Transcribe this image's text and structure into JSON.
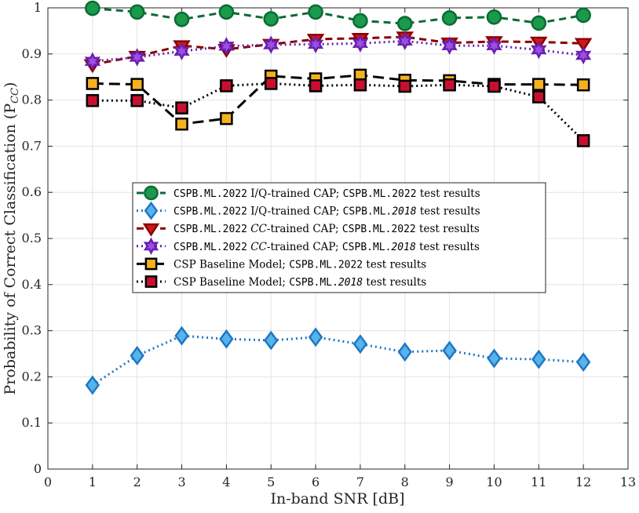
{
  "chart_data": {
    "type": "line",
    "xlabel": "In-band SNR [dB]",
    "ylabel": "Probability of Correct Classification (P",
    "ylabel_sub": "CC",
    "ylabel_close": ")",
    "xlim": [
      0,
      13
    ],
    "ylim": [
      0,
      1
    ],
    "xticks": [
      "0",
      "1",
      "2",
      "3",
      "4",
      "5",
      "6",
      "7",
      "8",
      "9",
      "10",
      "11",
      "12",
      "13"
    ],
    "yticks": [
      "0",
      "0.1",
      "0.2",
      "0.3",
      "0.4",
      "0.5",
      "0.6",
      "0.7",
      "0.8",
      "0.9",
      "1"
    ],
    "grid": true,
    "legend_position": "center-left",
    "x": [
      1,
      2,
      3,
      4,
      5,
      6,
      7,
      8,
      9,
      10,
      11,
      12
    ],
    "series": [
      {
        "name": "CSPB.ML.2022 I/Q-trained CAP; CSPB.ML.2022 test results",
        "values": [
          0.999,
          0.991,
          0.975,
          0.991,
          0.976,
          0.991,
          0.972,
          0.966,
          0.978,
          0.98,
          0.967,
          0.984
        ],
        "color": "#0b6b35",
        "fill": "#1a9a4a",
        "dash": "9,6",
        "marker": "circle"
      },
      {
        "name": "CSPB.ML.2022 I/Q-trained CAP; CSPB.ML.2018 test results",
        "values": [
          0.182,
          0.246,
          0.289,
          0.282,
          0.279,
          0.286,
          0.271,
          0.254,
          0.257,
          0.24,
          0.238,
          0.232
        ],
        "color": "#1f77c4",
        "fill": "#55b4ea",
        "dash": "2,4",
        "marker": "diamond"
      },
      {
        "name": "CSPB.ML.2022 CC-trained CAP; CSPB.ML.2022 test results",
        "values": [
          0.877,
          0.895,
          0.918,
          0.91,
          0.921,
          0.932,
          0.934,
          0.937,
          0.924,
          0.927,
          0.926,
          0.923
        ],
        "color": "#8b0000",
        "fill": "#cc1a1a",
        "dash": "9,6",
        "marker": "triangle"
      },
      {
        "name": "CSPB.ML.2022 CC-trained CAP; CSPB.ML.2018 test results",
        "values": [
          0.884,
          0.893,
          0.906,
          0.917,
          0.92,
          0.921,
          0.923,
          0.928,
          0.918,
          0.918,
          0.909,
          0.897
        ],
        "color": "#6a1fb0",
        "fill": "#9b4fe0",
        "dash": "2,4",
        "marker": "star"
      },
      {
        "name": "CSP Baseline Model; CSPB.ML.2022 test results",
        "values": [
          0.836,
          0.834,
          0.748,
          0.76,
          0.852,
          0.846,
          0.854,
          0.843,
          0.842,
          0.834,
          0.834,
          0.833
        ],
        "color": "#000000",
        "fill": "#f5b21f",
        "dash": "14,7",
        "marker": "square"
      },
      {
        "name": "CSP Baseline Model; CSPB.ML.2018 test results",
        "values": [
          0.799,
          0.799,
          0.783,
          0.831,
          0.836,
          0.831,
          0.833,
          0.83,
          0.833,
          0.83,
          0.807,
          0.712
        ],
        "color": "#000000",
        "fill": "#c8102e",
        "dash": "2,4",
        "marker": "square"
      }
    ],
    "legend": [
      {
        "parts": [
          {
            "t": "CSPB.ML.2022",
            "s": "mono"
          },
          {
            "t": " I/Q-trained CAP; ",
            "s": "serif"
          },
          {
            "t": "CSPB.ML.2022",
            "s": "mono"
          },
          {
            "t": " test results",
            "s": "serif"
          }
        ]
      },
      {
        "parts": [
          {
            "t": "CSPB.ML.2022",
            "s": "mono"
          },
          {
            "t": " I/Q-trained CAP; ",
            "s": "serif"
          },
          {
            "t": "CSPB.ML.",
            "s": "mono"
          },
          {
            "t": "2018",
            "s": "monoital"
          },
          {
            "t": " test results",
            "s": "serif"
          }
        ]
      },
      {
        "parts": [
          {
            "t": "CSPB.ML.2022",
            "s": "mono"
          },
          {
            "t": " ",
            "s": "serif"
          },
          {
            "t": "CC",
            "s": "ital"
          },
          {
            "t": "-trained CAP; ",
            "s": "serif"
          },
          {
            "t": "CSPB.ML.2022",
            "s": "mono"
          },
          {
            "t": " test results",
            "s": "serif"
          }
        ]
      },
      {
        "parts": [
          {
            "t": "CSPB.ML.2022",
            "s": "mono"
          },
          {
            "t": " ",
            "s": "serif"
          },
          {
            "t": "CC",
            "s": "ital"
          },
          {
            "t": "-trained CAP; ",
            "s": "serif"
          },
          {
            "t": "CSPB.ML.",
            "s": "mono"
          },
          {
            "t": "2018",
            "s": "monoital"
          },
          {
            "t": " test results",
            "s": "serif"
          }
        ]
      },
      {
        "parts": [
          {
            "t": "CSP Baseline Model; ",
            "s": "serif"
          },
          {
            "t": "CSPB.ML.2022",
            "s": "mono"
          },
          {
            "t": " test results",
            "s": "serif"
          }
        ]
      },
      {
        "parts": [
          {
            "t": "CSP Baseline Model; ",
            "s": "serif"
          },
          {
            "t": "CSPB.ML.",
            "s": "mono"
          },
          {
            "t": "2018",
            "s": "monoital"
          },
          {
            "t": " test results",
            "s": "serif"
          }
        ]
      }
    ]
  }
}
